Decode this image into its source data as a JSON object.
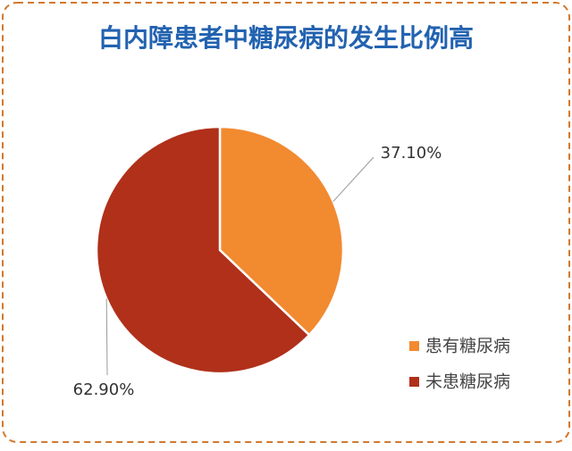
{
  "chart_data": {
    "type": "pie",
    "title": "白内障患者中糖尿病的发生比例高",
    "categories": [
      "患有糖尿病",
      "未患糖尿病"
    ],
    "values": [
      37.1,
      62.9
    ],
    "value_labels": [
      "37.10%",
      "62.90%"
    ],
    "colors": [
      "#f28a30",
      "#b0301a"
    ]
  }
}
